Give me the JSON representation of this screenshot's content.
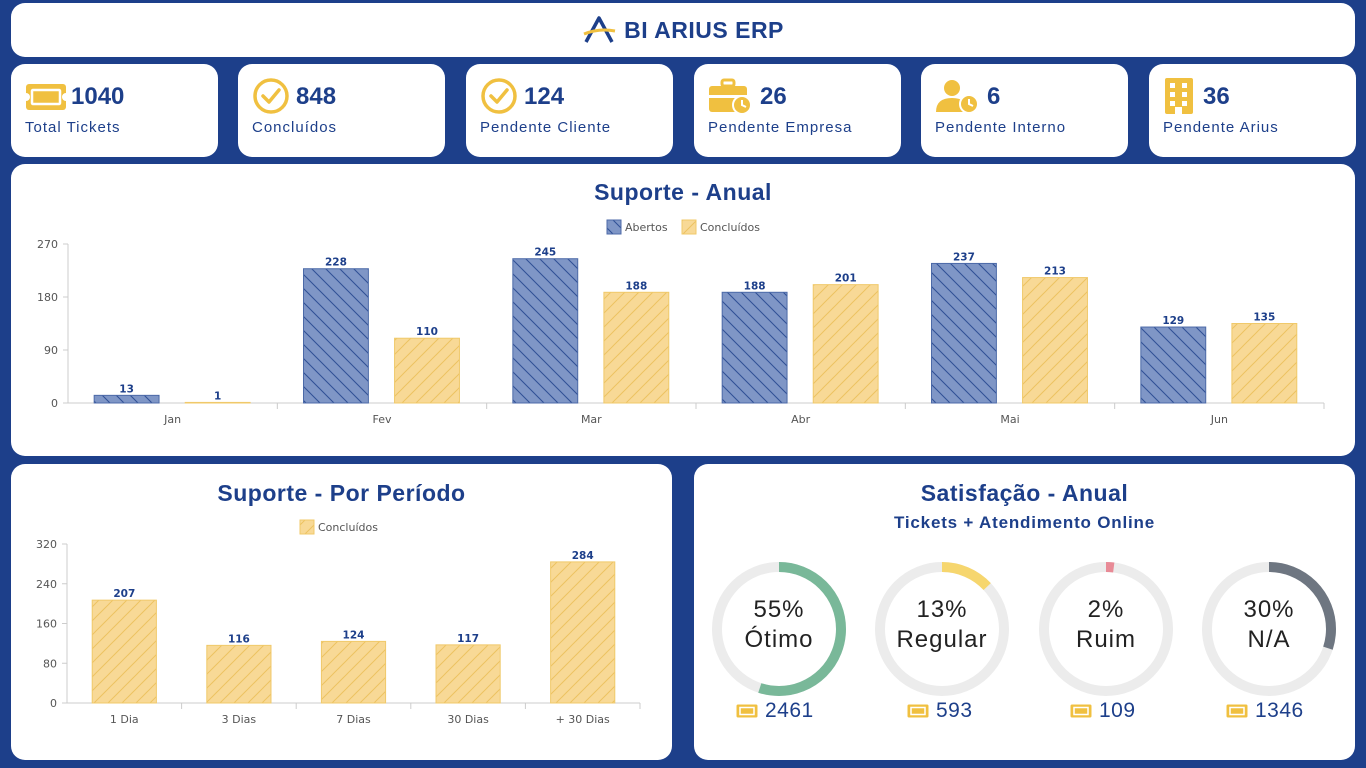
{
  "header": {
    "brand": "BI ARIUS ERP"
  },
  "kpis": [
    {
      "value": "1040",
      "label": "Total Tickets",
      "icon": "ticket-icon"
    },
    {
      "value": "848",
      "label": "Concluídos",
      "icon": "check-circle-icon"
    },
    {
      "value": "124",
      "label": "Pendente Cliente",
      "icon": "check-circle-icon"
    },
    {
      "value": "26",
      "label": "Pendente Empresa",
      "icon": "briefcase-clock-icon"
    },
    {
      "value": "6",
      "label": "Pendente Interno",
      "icon": "user-clock-icon"
    },
    {
      "value": "36",
      "label": "Pendente Arius",
      "icon": "building-icon"
    }
  ],
  "colors": {
    "navy": "#1d3f8a",
    "abertos": "#7f96c6",
    "concluidos": "#f8d996",
    "accent": "#f0c040",
    "otimo": "#79b899",
    "regular": "#f6d66e",
    "ruim": "#e88a96",
    "na": "#6e7681"
  },
  "annual": {
    "title": "Suporte - Anual"
  },
  "period": {
    "title": "Suporte - Por Período"
  },
  "satisfaction": {
    "title": "Satisfação - Anual",
    "subtitle": "Tickets + Atendimento Online",
    "items": [
      {
        "pct": "55%",
        "label": "Ótimo",
        "value": 55,
        "count": "2461",
        "color": "#79b899"
      },
      {
        "pct": "13%",
        "label": "Regular",
        "value": 13,
        "count": "593",
        "color": "#f6d66e"
      },
      {
        "pct": "2%",
        "label": "Ruim",
        "value": 2,
        "count": "109",
        "color": "#e88a96"
      },
      {
        "pct": "30%",
        "label": "N/A",
        "value": 30,
        "count": "1346",
        "color": "#6e7681"
      }
    ]
  },
  "chart_data": [
    {
      "type": "bar",
      "title": "Suporte - Anual",
      "categories": [
        "Jan",
        "Fev",
        "Mar",
        "Abr",
        "Mai",
        "Jun"
      ],
      "series": [
        {
          "name": "Abertos",
          "values": [
            13,
            228,
            245,
            188,
            237,
            129
          ]
        },
        {
          "name": "Concluídos",
          "values": [
            1,
            110,
            188,
            201,
            213,
            135
          ]
        }
      ],
      "ylim": [
        0,
        270
      ],
      "yticks": [
        0,
        90,
        180,
        270
      ],
      "legend": "top-center"
    },
    {
      "type": "bar",
      "title": "Suporte - Por Período",
      "categories": [
        "1 Dia",
        "3 Dias",
        "7 Dias",
        "30 Dias",
        "+ 30 Dias"
      ],
      "series": [
        {
          "name": "Concluídos",
          "values": [
            207,
            116,
            124,
            117,
            284
          ]
        }
      ],
      "ylim": [
        0,
        320
      ],
      "yticks": [
        0,
        80,
        160,
        240,
        320
      ],
      "legend": "top-center"
    }
  ]
}
